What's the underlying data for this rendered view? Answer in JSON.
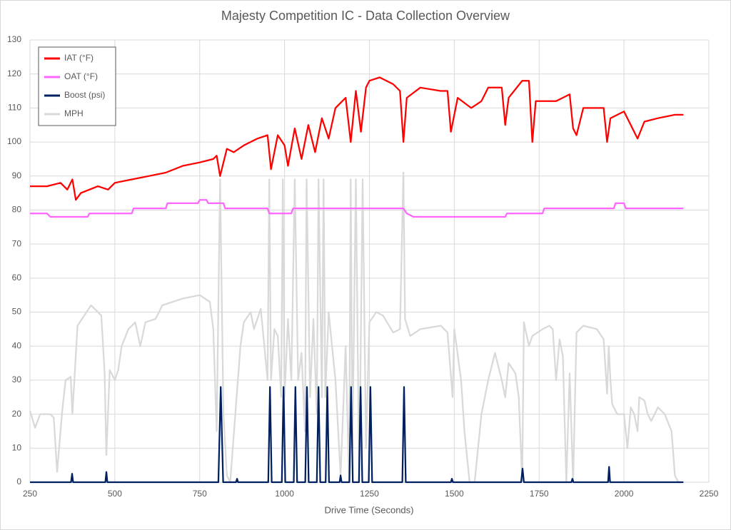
{
  "chart_data": {
    "type": "line",
    "title": "Majesty Competition IC - Data Collection Overview",
    "x_label": "Drive Time (Seconds)",
    "xlim": [
      250,
      2250
    ],
    "xticks": [
      250,
      500,
      750,
      1000,
      1250,
      1500,
      1750,
      2000,
      2250
    ],
    "ylim": [
      0,
      130
    ],
    "yticks": [
      0,
      10,
      20,
      30,
      40,
      50,
      60,
      70,
      80,
      90,
      100,
      110,
      120,
      130
    ],
    "grid": true,
    "legend": "top-left",
    "series": [
      {
        "name": "IAT (°F)",
        "color": "#ff0000",
        "x": [
          250,
          300,
          340,
          360,
          375,
          385,
          400,
          450,
          480,
          500,
          550,
          600,
          650,
          700,
          750,
          790,
          800,
          810,
          830,
          850,
          880,
          920,
          950,
          960,
          980,
          1000,
          1010,
          1030,
          1050,
          1070,
          1090,
          1110,
          1130,
          1150,
          1180,
          1195,
          1210,
          1225,
          1240,
          1250,
          1280,
          1320,
          1340,
          1350,
          1360,
          1400,
          1460,
          1480,
          1490,
          1510,
          1550,
          1580,
          1600,
          1640,
          1650,
          1660,
          1700,
          1720,
          1730,
          1740,
          1800,
          1840,
          1850,
          1860,
          1880,
          1940,
          1950,
          1960,
          2000,
          2020,
          2040,
          2060,
          2100,
          2150,
          2175
        ],
        "values": [
          87,
          87,
          88,
          86,
          89,
          83,
          85,
          87,
          86,
          88,
          89,
          90,
          91,
          93,
          94,
          95,
          96,
          90,
          98,
          97,
          99,
          101,
          102,
          92,
          102,
          99,
          93,
          104,
          95,
          105,
          97,
          107,
          101,
          110,
          113,
          100,
          115,
          103,
          116,
          118,
          119,
          117,
          115,
          100,
          113,
          116,
          115,
          115,
          103,
          113,
          110,
          112,
          116,
          116,
          105,
          113,
          118,
          118,
          100,
          112,
          112,
          114,
          104,
          102,
          110,
          110,
          100,
          107,
          109,
          105,
          101,
          106,
          107,
          108,
          108
        ]
      },
      {
        "name": "OAT (°F)",
        "color": "#ff66ff",
        "x": [
          250,
          300,
          310,
          420,
          425,
          550,
          555,
          650,
          655,
          745,
          750,
          770,
          775,
          820,
          825,
          950,
          955,
          1020,
          1025,
          1350,
          1360,
          1380,
          1650,
          1655,
          1760,
          1765,
          1970,
          1975,
          2000,
          2005,
          2175
        ],
        "values": [
          79,
          79,
          78,
          78,
          79,
          79,
          80.5,
          80.5,
          82,
          82,
          83,
          83,
          82,
          82,
          80.5,
          80.5,
          79,
          79,
          80.5,
          80.5,
          79,
          78,
          78,
          79,
          79,
          80.5,
          80.5,
          82,
          82,
          80.5,
          80.5
        ]
      },
      {
        "name": "Boost (psi)",
        "color": "#002060",
        "x": [
          250,
          371,
          374,
          377,
          472,
          475,
          478,
          805,
          812,
          819,
          857,
          860,
          863,
          952,
          957,
          962,
          992,
          997,
          1002,
          1027,
          1032,
          1037,
          1061,
          1066,
          1071,
          1095,
          1100,
          1105,
          1121,
          1126,
          1131,
          1162,
          1165,
          1168,
          1191,
          1196,
          1201,
          1219,
          1224,
          1229,
          1248,
          1253,
          1258,
          1347,
          1352,
          1357,
          1490,
          1493,
          1496,
          1697,
          1701,
          1705,
          1845,
          1848,
          1851,
          1953,
          1956,
          1959,
          2175
        ],
        "values": [
          0,
          0,
          2.5,
          0,
          0,
          3,
          0,
          0,
          28,
          0,
          0,
          1,
          0,
          0,
          28,
          0,
          0,
          28,
          0,
          0,
          28,
          0,
          0,
          28,
          0,
          0,
          28,
          0,
          0,
          28,
          0,
          0,
          2,
          0,
          0,
          28,
          0,
          0,
          28,
          0,
          0,
          28,
          0,
          0,
          28,
          0,
          0,
          1,
          0,
          0,
          4,
          0,
          0,
          1,
          0,
          0,
          4.5,
          0,
          0
        ]
      },
      {
        "name": "MPH",
        "color": "#d9d9d9",
        "x": [
          250,
          265,
          280,
          310,
          320,
          330,
          345,
          355,
          370,
          375,
          390,
          410,
          430,
          460,
          470,
          475,
          485,
          500,
          510,
          520,
          540,
          560,
          575,
          590,
          620,
          640,
          700,
          750,
          780,
          790,
          800,
          810,
          820,
          830,
          840,
          870,
          880,
          900,
          910,
          930,
          950,
          955,
          960,
          970,
          980,
          990,
          995,
          1000,
          1010,
          1020,
          1030,
          1040,
          1050,
          1060,
          1065,
          1075,
          1085,
          1095,
          1100,
          1110,
          1115,
          1120,
          1130,
          1150,
          1165,
          1180,
          1190,
          1195,
          1200,
          1210,
          1220,
          1230,
          1240,
          1250,
          1270,
          1290,
          1320,
          1340,
          1350,
          1355,
          1370,
          1400,
          1460,
          1480,
          1495,
          1500,
          1520,
          1530,
          1545,
          1560,
          1580,
          1600,
          1620,
          1640,
          1650,
          1660,
          1680,
          1690,
          1700,
          1705,
          1720,
          1730,
          1760,
          1780,
          1790,
          1800,
          1810,
          1820,
          1830,
          1840,
          1850,
          1860,
          1880,
          1920,
          1940,
          1950,
          1955,
          1960,
          1965,
          1980,
          2000,
          2010,
          2020,
          2030,
          2040,
          2045,
          2060,
          2070,
          2080,
          2100,
          2120,
          2140,
          2150,
          2160,
          2170
        ],
        "values": [
          21,
          16,
          20,
          20,
          19,
          3,
          21,
          30,
          31,
          20,
          46,
          49,
          52,
          49,
          32,
          8,
          33,
          30,
          33,
          40,
          45,
          47,
          40,
          47,
          48,
          52,
          54,
          55,
          53,
          45,
          15,
          89,
          20,
          2,
          0,
          40,
          47,
          50,
          45,
          51,
          30,
          89,
          30,
          45,
          43,
          25,
          89,
          25,
          48,
          30,
          89,
          30,
          38,
          15,
          89,
          25,
          48,
          20,
          89,
          25,
          89,
          25,
          50,
          30,
          2,
          40,
          0,
          89,
          10,
          89,
          0,
          89,
          10,
          47,
          50,
          49,
          44,
          45,
          91,
          48,
          43,
          45,
          46,
          44,
          25,
          45,
          30,
          15,
          0,
          0,
          20,
          30,
          38,
          30,
          25,
          35,
          32,
          25,
          0,
          47,
          40,
          43,
          45,
          46,
          45,
          30,
          42,
          37,
          0,
          32,
          0,
          44,
          46,
          45,
          42,
          26,
          40,
          30,
          23,
          20,
          20,
          10,
          22,
          20,
          15,
          25,
          24,
          20,
          18,
          22,
          20,
          15,
          2,
          0,
          0
        ]
      }
    ]
  }
}
